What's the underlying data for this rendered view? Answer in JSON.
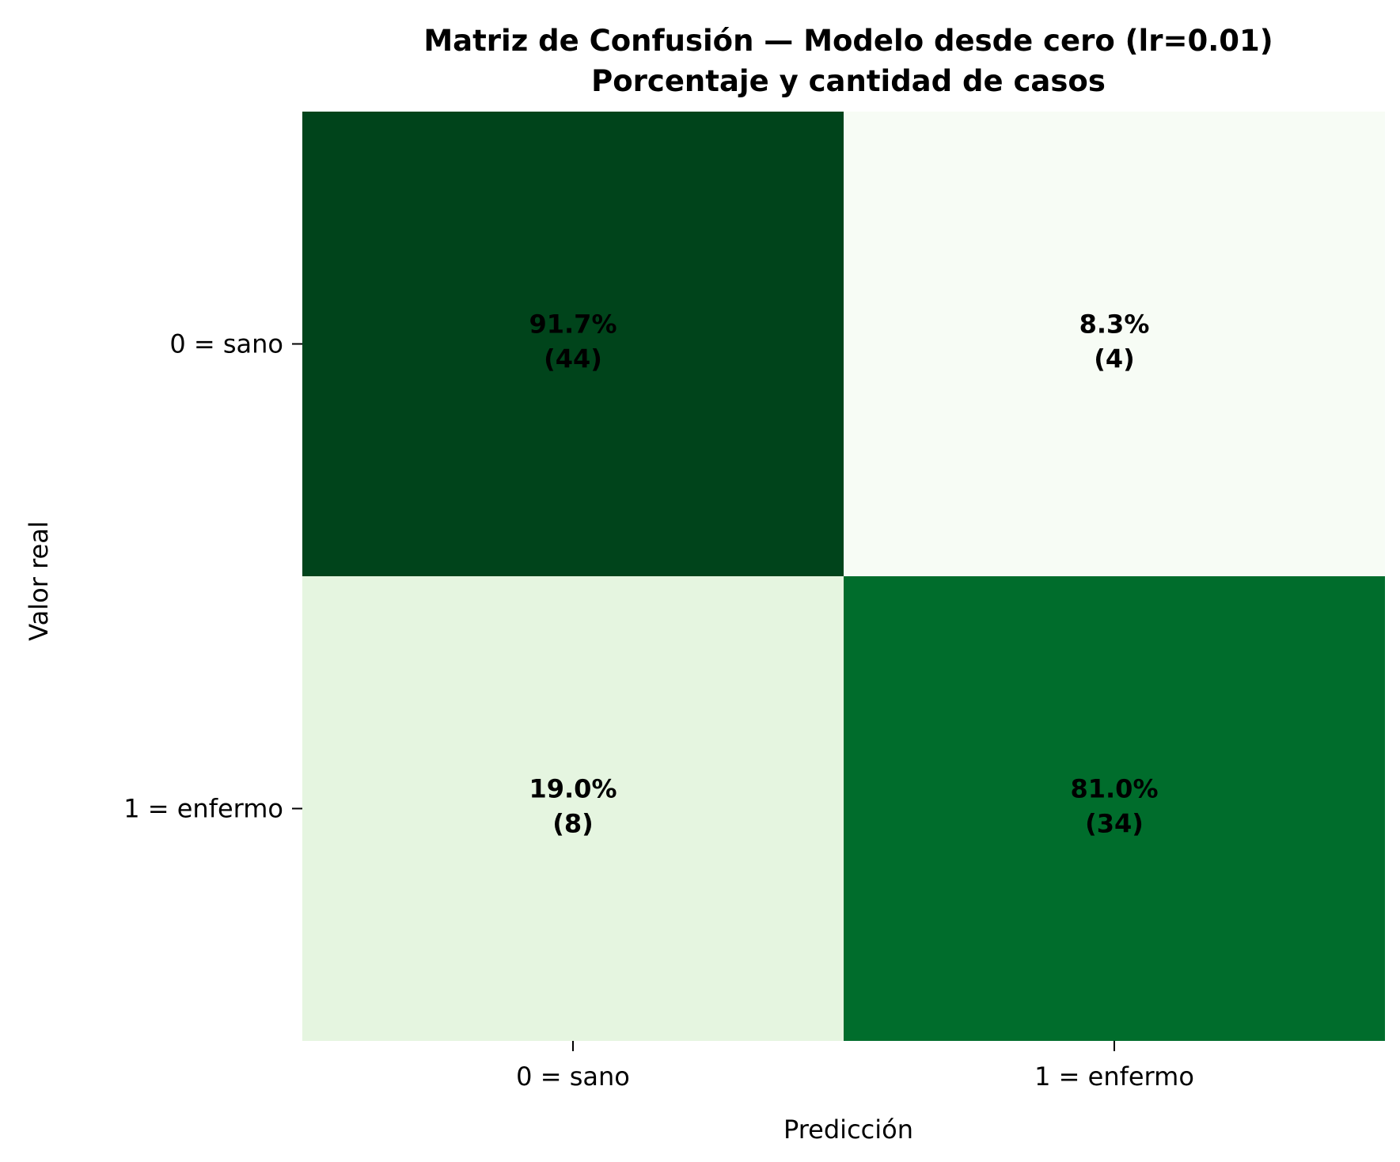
{
  "chart_data": {
    "type": "heatmap",
    "title": "Matriz de Confusión — Modelo desde cero (lr=0.01)",
    "subtitle": "Porcentaje y cantidad de casos",
    "xlabel": "Predicción",
    "ylabel": "Valor real",
    "x_categories": [
      "0 = sano",
      "1 = enfermo"
    ],
    "y_categories": [
      "0 = sano",
      "1 = enfermo"
    ],
    "colormap": "Greens",
    "colorbar": false,
    "cells": [
      [
        {
          "percent": 91.7,
          "count": 44,
          "percent_label": "91.7%",
          "count_label": "(44)",
          "color": "#00441b"
        },
        {
          "percent": 8.3,
          "count": 4,
          "percent_label": "8.3%",
          "count_label": "(4)",
          "color": "#f7fcf5"
        }
      ],
      [
        {
          "percent": 19.0,
          "count": 8,
          "percent_label": "19.0%",
          "count_label": "(8)",
          "color": "#e5f5e0"
        },
        {
          "percent": 81.0,
          "count": 34,
          "percent_label": "81.0%",
          "count_label": "(34)",
          "color": "#006d2c"
        }
      ]
    ]
  }
}
